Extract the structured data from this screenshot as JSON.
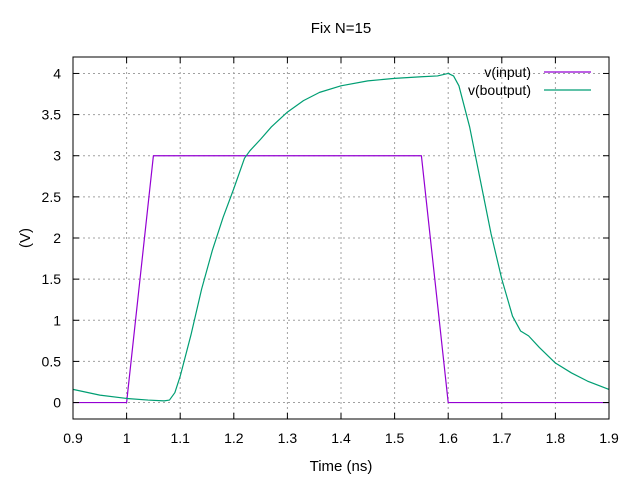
{
  "chart_data": {
    "type": "line",
    "title": "Fix N=15",
    "xlabel": "Time (ns)",
    "ylabel": "(V)",
    "xlim": [
      0.9,
      1.9
    ],
    "ylim": [
      -0.2,
      4.2
    ],
    "x_ticks": [
      0.9,
      1.0,
      1.1,
      1.2,
      1.3,
      1.4,
      1.5,
      1.6,
      1.7,
      1.8,
      1.9
    ],
    "x_tick_labels": [
      "0.9",
      "1",
      "1.1",
      "1.2",
      "1.3",
      "1.4",
      "1.5",
      "1.6",
      "1.7",
      "1.8",
      "1.9"
    ],
    "y_ticks": [
      0,
      0.5,
      1,
      1.5,
      2,
      2.5,
      3,
      3.5,
      4
    ],
    "y_tick_labels": [
      "0",
      "0.5",
      "1",
      "1.5",
      "2",
      "2.5",
      "3",
      "3.5",
      "4"
    ],
    "grid": true,
    "legend_position": "top-right",
    "series": [
      {
        "name": "v(input)",
        "color": "#9400d3",
        "x": [
          0.9,
          1.0,
          1.05,
          1.55,
          1.6,
          1.9
        ],
        "y": [
          0.0,
          0.0,
          3.0,
          3.0,
          0.0,
          0.0
        ]
      },
      {
        "name": "v(boutput)",
        "color": "#009e73",
        "x": [
          0.9,
          0.95,
          1.0,
          1.04,
          1.07,
          1.08,
          1.09,
          1.1,
          1.12,
          1.14,
          1.16,
          1.18,
          1.2,
          1.22,
          1.23,
          1.25,
          1.27,
          1.3,
          1.33,
          1.36,
          1.4,
          1.45,
          1.5,
          1.55,
          1.58,
          1.6,
          1.61,
          1.62,
          1.64,
          1.66,
          1.68,
          1.7,
          1.72,
          1.735,
          1.75,
          1.77,
          1.8,
          1.83,
          1.86,
          1.9
        ],
        "y": [
          0.16,
          0.09,
          0.05,
          0.03,
          0.02,
          0.03,
          0.12,
          0.32,
          0.82,
          1.38,
          1.85,
          2.25,
          2.6,
          2.97,
          3.06,
          3.2,
          3.35,
          3.53,
          3.67,
          3.77,
          3.85,
          3.91,
          3.94,
          3.96,
          3.97,
          4.0,
          3.97,
          3.85,
          3.35,
          2.7,
          2.05,
          1.5,
          1.05,
          0.87,
          0.81,
          0.67,
          0.48,
          0.36,
          0.26,
          0.16
        ]
      }
    ]
  }
}
